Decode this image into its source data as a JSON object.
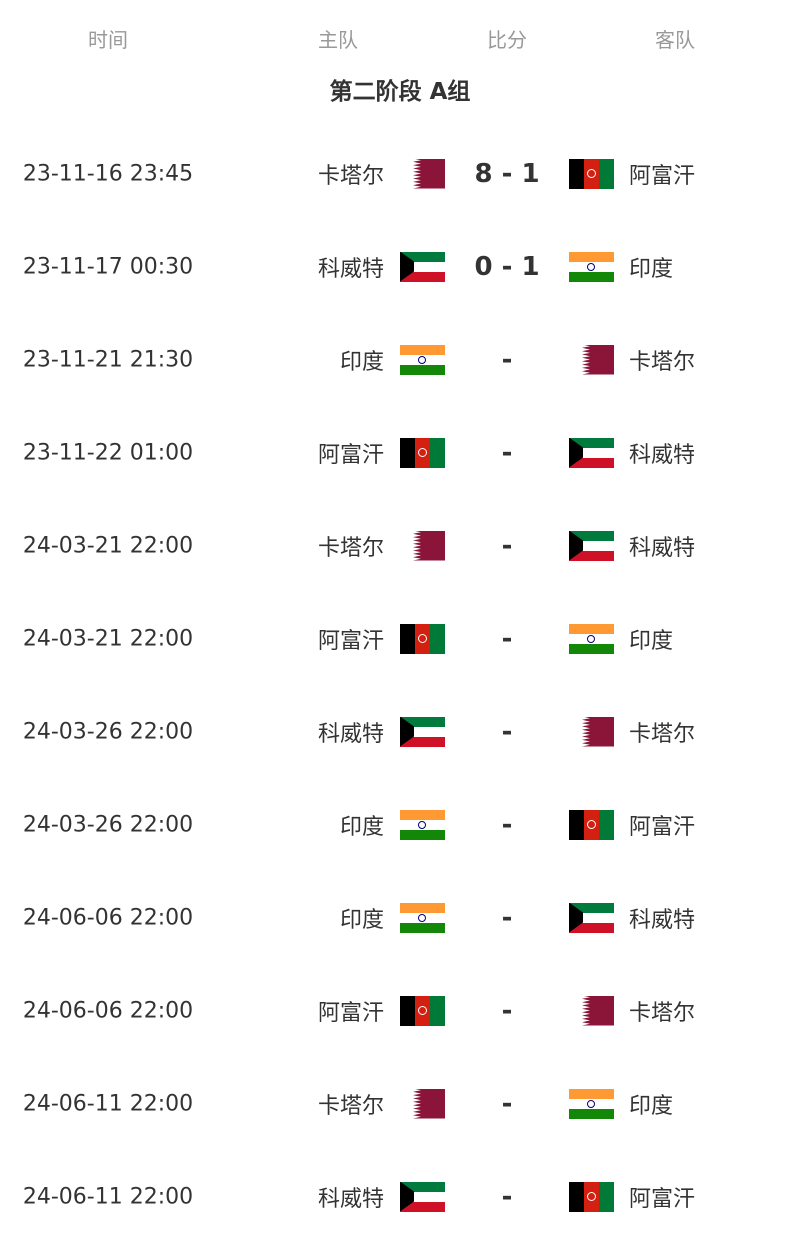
{
  "header": {
    "time": "时间",
    "home": "主队",
    "score": "比分",
    "away": "客队"
  },
  "group_title": "第二阶段 A组",
  "matches": [
    {
      "time": "23-11-16 23:45",
      "home": "卡塔尔",
      "home_flag": "qa",
      "score": "8 - 1",
      "away": "阿富汗",
      "away_flag": "af"
    },
    {
      "time": "23-11-17 00:30",
      "home": "科威特",
      "home_flag": "kw",
      "score": "0 - 1",
      "away": "印度",
      "away_flag": "in"
    },
    {
      "time": "23-11-21 21:30",
      "home": "印度",
      "home_flag": "in",
      "score": "-",
      "away": "卡塔尔",
      "away_flag": "qa"
    },
    {
      "time": "23-11-22 01:00",
      "home": "阿富汗",
      "home_flag": "af",
      "score": "-",
      "away": "科威特",
      "away_flag": "kw"
    },
    {
      "time": "24-03-21 22:00",
      "home": "卡塔尔",
      "home_flag": "qa",
      "score": "-",
      "away": "科威特",
      "away_flag": "kw"
    },
    {
      "time": "24-03-21 22:00",
      "home": "阿富汗",
      "home_flag": "af",
      "score": "-",
      "away": "印度",
      "away_flag": "in"
    },
    {
      "time": "24-03-26 22:00",
      "home": "科威特",
      "home_flag": "kw",
      "score": "-",
      "away": "卡塔尔",
      "away_flag": "qa"
    },
    {
      "time": "24-03-26 22:00",
      "home": "印度",
      "home_flag": "in",
      "score": "-",
      "away": "阿富汗",
      "away_flag": "af"
    },
    {
      "time": "24-06-06 22:00",
      "home": "印度",
      "home_flag": "in",
      "score": "-",
      "away": "科威特",
      "away_flag": "kw"
    },
    {
      "time": "24-06-06 22:00",
      "home": "阿富汗",
      "home_flag": "af",
      "score": "-",
      "away": "卡塔尔",
      "away_flag": "qa"
    },
    {
      "time": "24-06-11 22:00",
      "home": "卡塔尔",
      "home_flag": "qa",
      "score": "-",
      "away": "印度",
      "away_flag": "in"
    },
    {
      "time": "24-06-11 22:00",
      "home": "科威特",
      "home_flag": "kw",
      "score": "-",
      "away": "阿富汗",
      "away_flag": "af"
    }
  ]
}
